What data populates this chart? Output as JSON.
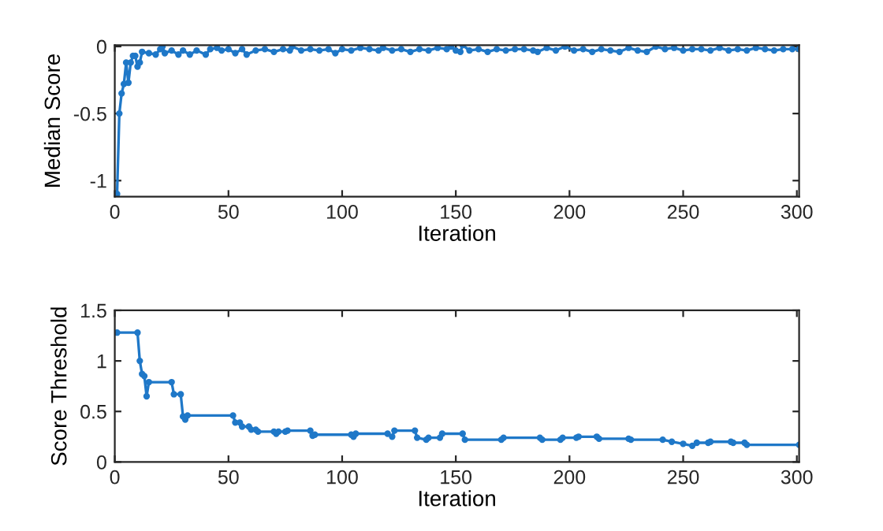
{
  "chart_data": [
    {
      "type": "line",
      "xlabel": "Iteration",
      "ylabel": "Median Score",
      "xlim": [
        0,
        301
      ],
      "ylim": [
        -1.12,
        0.01
      ],
      "xticks": [
        0,
        50,
        100,
        150,
        200,
        250,
        300
      ],
      "yticks": [
        -1,
        -0.5,
        0
      ],
      "grid": false,
      "marker": "circle",
      "line_style": "solid",
      "series": [
        {
          "color": "#1f78c8",
          "x": [
            1,
            2,
            3,
            4,
            5,
            6,
            7,
            8,
            9,
            10,
            11,
            12,
            15,
            18,
            20,
            21,
            22,
            25,
            28,
            30,
            33,
            36,
            40,
            42,
            45,
            47,
            50,
            53,
            56,
            58,
            62,
            66,
            70,
            74,
            77,
            78,
            82,
            86,
            90,
            94,
            97,
            100,
            104,
            108,
            112,
            116,
            118,
            122,
            126,
            130,
            134,
            138,
            142,
            146,
            148,
            150,
            152,
            153,
            156,
            160,
            164,
            168,
            172,
            176,
            180,
            184,
            186,
            190,
            194,
            198,
            202,
            206,
            210,
            214,
            218,
            222,
            226,
            230,
            234,
            238,
            242,
            246,
            250,
            254,
            258,
            262,
            266,
            270,
            274,
            278,
            282,
            286,
            290,
            294,
            298,
            301
          ],
          "values": [
            -1.1,
            -0.5,
            -0.35,
            -0.28,
            -0.12,
            -0.27,
            -0.12,
            -0.07,
            -0.07,
            -0.15,
            -0.12,
            -0.04,
            -0.05,
            -0.06,
            -0.02,
            0.0,
            -0.05,
            -0.03,
            -0.06,
            -0.03,
            -0.06,
            -0.03,
            -0.06,
            -0.02,
            -0.01,
            -0.03,
            -0.02,
            -0.05,
            -0.02,
            -0.06,
            -0.03,
            -0.02,
            -0.04,
            -0.02,
            -0.03,
            0.0,
            -0.03,
            -0.02,
            -0.03,
            -0.02,
            -0.05,
            -0.02,
            -0.03,
            -0.01,
            -0.02,
            -0.03,
            -0.01,
            -0.03,
            -0.02,
            -0.04,
            -0.02,
            -0.03,
            -0.01,
            -0.02,
            0.0,
            -0.03,
            -0.04,
            0.01,
            -0.03,
            -0.02,
            -0.04,
            -0.02,
            -0.03,
            -0.02,
            -0.02,
            -0.03,
            -0.04,
            -0.01,
            -0.03,
            0.0,
            -0.03,
            -0.02,
            -0.04,
            -0.02,
            -0.03,
            -0.04,
            -0.01,
            -0.03,
            -0.04,
            0.0,
            -0.02,
            -0.01,
            -0.03,
            -0.02,
            -0.02,
            -0.03,
            -0.01,
            -0.03,
            -0.02,
            -0.03,
            -0.01,
            -0.02,
            -0.03,
            -0.02,
            -0.02,
            -0.02
          ]
        }
      ]
    },
    {
      "type": "line",
      "xlabel": "Iteration",
      "ylabel": "Score Threshold",
      "xlim": [
        0,
        301
      ],
      "ylim": [
        0,
        1.5
      ],
      "xticks": [
        0,
        50,
        100,
        150,
        200,
        250,
        300
      ],
      "yticks": [
        0,
        0.5,
        1,
        1.5
      ],
      "grid": false,
      "marker": "circle",
      "line_style": "solid",
      "series": [
        {
          "color": "#1f78c8",
          "x": [
            1,
            10,
            11,
            12,
            13,
            14,
            15,
            25,
            26,
            29,
            30,
            31,
            32,
            52,
            53,
            55,
            56,
            59,
            60,
            62,
            63,
            70,
            71,
            72,
            75,
            76,
            86,
            87,
            88,
            104,
            105,
            106,
            120,
            122,
            123,
            132,
            133,
            137,
            138,
            143,
            144,
            153,
            154,
            170,
            171,
            187,
            188,
            196,
            197,
            203,
            204,
            212,
            213,
            226,
            227,
            241,
            245,
            250,
            254,
            256,
            261,
            262,
            271,
            272,
            277,
            278,
            301
          ],
          "values": [
            1.28,
            1.28,
            1.0,
            0.87,
            0.85,
            0.65,
            0.79,
            0.79,
            0.67,
            0.67,
            0.45,
            0.42,
            0.46,
            0.46,
            0.39,
            0.39,
            0.35,
            0.35,
            0.32,
            0.32,
            0.3,
            0.3,
            0.28,
            0.3,
            0.3,
            0.31,
            0.31,
            0.26,
            0.27,
            0.27,
            0.25,
            0.28,
            0.28,
            0.25,
            0.31,
            0.31,
            0.24,
            0.22,
            0.24,
            0.24,
            0.28,
            0.28,
            0.22,
            0.22,
            0.24,
            0.24,
            0.22,
            0.22,
            0.24,
            0.24,
            0.25,
            0.25,
            0.23,
            0.23,
            0.22,
            0.22,
            0.2,
            0.18,
            0.16,
            0.19,
            0.19,
            0.2,
            0.2,
            0.19,
            0.19,
            0.17,
            0.17
          ]
        }
      ]
    }
  ]
}
